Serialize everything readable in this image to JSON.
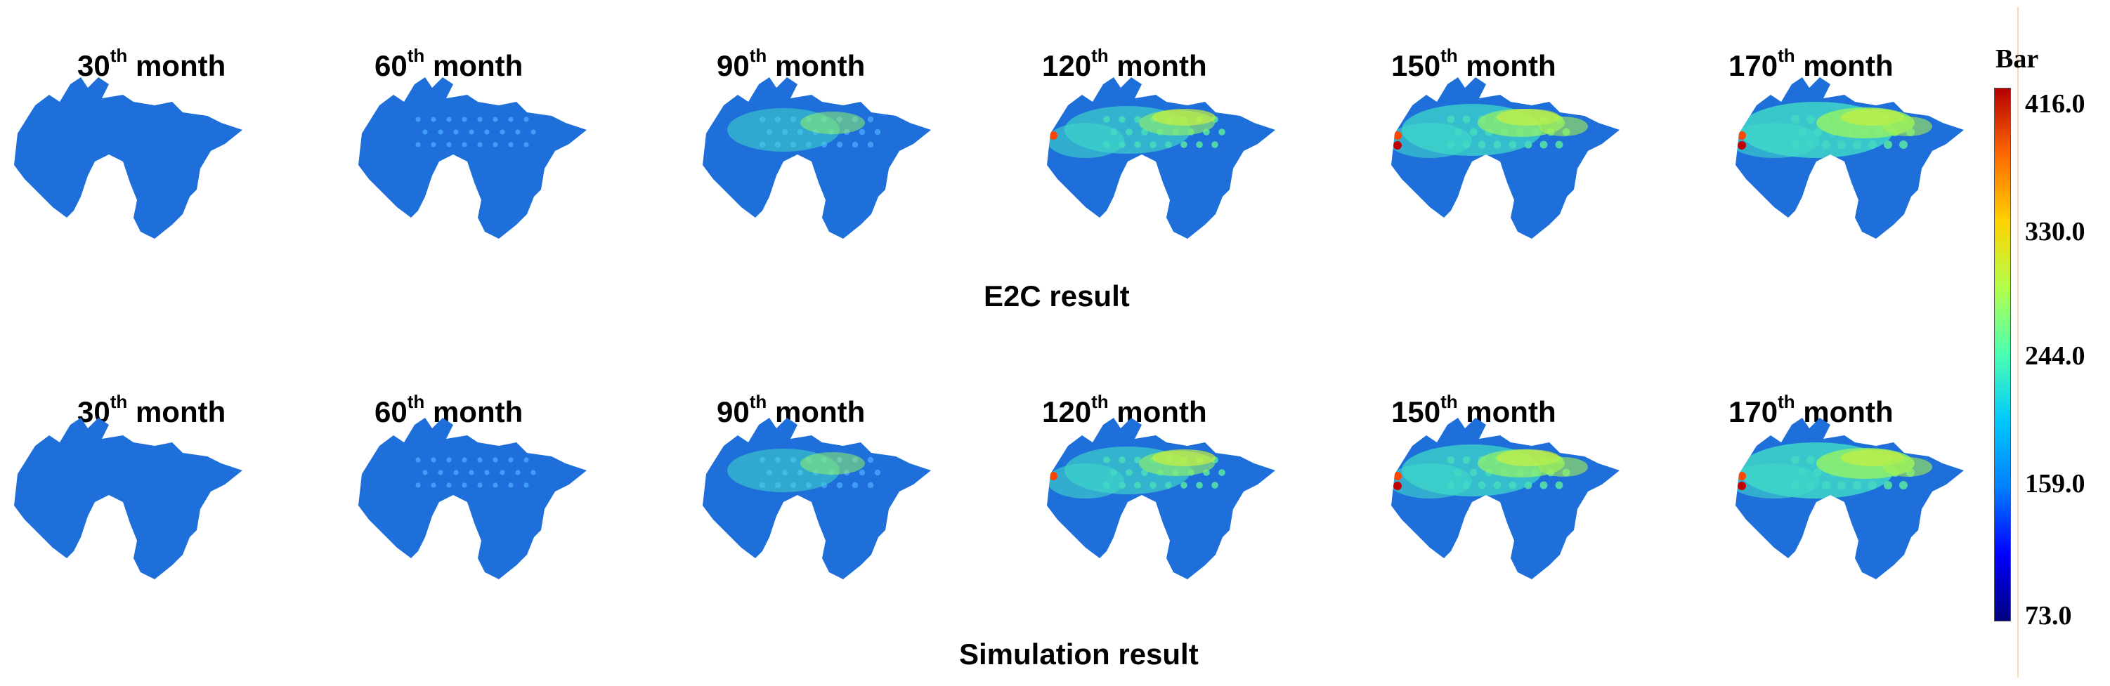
{
  "colors": {
    "base": "#1e6fd9",
    "colormap": [
      "#00007f",
      "#0000ff",
      "#007fff",
      "#00c8ff",
      "#4cffb2",
      "#b2ff4c",
      "#ffd200",
      "#ff6a00",
      "#b40000"
    ]
  },
  "rows": [
    {
      "titles": [
        {
          "num": "30",
          "sup": "th",
          "word": "month"
        },
        {
          "num": "60",
          "sup": "th",
          "word": "month"
        },
        {
          "num": "90",
          "sup": "th",
          "word": "month"
        },
        {
          "num": "120",
          "sup": "th",
          "word": "month"
        },
        {
          "num": "150",
          "sup": "th",
          "word": "month"
        },
        {
          "num": "170",
          "sup": "th",
          "word": "month"
        }
      ],
      "caption": "E2C result"
    },
    {
      "titles": [
        {
          "num": "30",
          "sup": "th",
          "word": "month"
        },
        {
          "num": "60",
          "sup": "th",
          "word": "month"
        },
        {
          "num": "90",
          "sup": "th",
          "word": "month"
        },
        {
          "num": "120",
          "sup": "th",
          "word": "month"
        },
        {
          "num": "150",
          "sup": "th",
          "word": "month"
        },
        {
          "num": "170",
          "sup": "th",
          "word": "month"
        }
      ],
      "caption": "Simulation result"
    }
  ],
  "colorbar": {
    "unit": "Bar",
    "ticks": [
      "416.0",
      "330.0",
      "244.0",
      "159.0",
      "73.0"
    ]
  }
}
